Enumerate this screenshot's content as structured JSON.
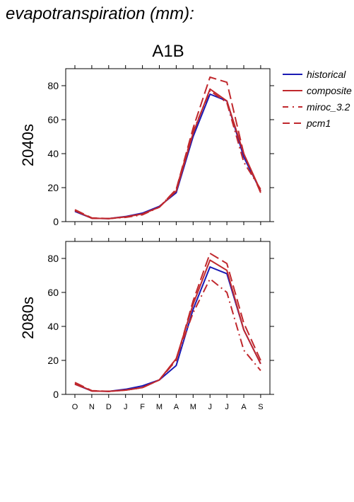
{
  "page_title": "evapotranspiration (mm):",
  "colors": {
    "historical": "#1a1ab4",
    "composite": "#c0282d",
    "miroc_3.2": "#c0282d",
    "pcm1": "#c0282d"
  },
  "chart_data": {
    "type": "line",
    "title": "A1B",
    "categories": [
      "O",
      "N",
      "D",
      "J",
      "F",
      "M",
      "A",
      "M",
      "J",
      "J",
      "A",
      "S"
    ],
    "ylim": [
      0,
      90
    ],
    "yticks": [
      0,
      20,
      40,
      60,
      80
    ],
    "legend": {
      "placement": "right",
      "entries": [
        {
          "name": "historical",
          "style": "solid",
          "color": "#1a1ab4"
        },
        {
          "name": "composite",
          "style": "solid",
          "color": "#c0282d"
        },
        {
          "name": "miroc_3.2",
          "style": "dashdot",
          "color": "#c0282d"
        },
        {
          "name": "pcm1",
          "style": "dashed",
          "color": "#c0282d"
        }
      ]
    },
    "panels": [
      {
        "ylabel": "2040s",
        "series": [
          {
            "name": "historical",
            "values": [
              6,
              2,
              1.8,
              3,
              5,
              9,
              17,
              50,
              75,
              71,
              38,
              18
            ]
          },
          {
            "name": "composite",
            "values": [
              6.5,
              2,
              1.8,
              2.8,
              4.5,
              8.5,
              18,
              52,
              78,
              71,
              40,
              18
            ]
          },
          {
            "name": "miroc_3.2",
            "values": [
              6.5,
              2,
              1.8,
              2.5,
              4,
              8.5,
              19,
              53,
              77,
              70,
              35,
              19
            ]
          },
          {
            "name": "pcm1",
            "values": [
              7,
              2.2,
              1.8,
              2.8,
              4.5,
              8.5,
              19,
              55,
              85,
              82,
              40,
              17
            ]
          }
        ]
      },
      {
        "ylabel": "2080s",
        "series": [
          {
            "name": "historical",
            "values": [
              6,
              2,
              1.8,
              3,
              5,
              8.5,
              17,
              50,
              75,
              71,
              38,
              18
            ]
          },
          {
            "name": "composite",
            "values": [
              6.5,
              2,
              1.8,
              2.5,
              4,
              8.5,
              21,
              53,
              79,
              73,
              38,
              18
            ]
          },
          {
            "name": "miroc_3.2",
            "values": [
              6,
              2,
              1.8,
              2.5,
              4,
              8.5,
              21,
              48,
              68,
              60,
              26,
              14
            ]
          },
          {
            "name": "pcm1",
            "values": [
              7,
              2.2,
              1.8,
              2.5,
              4,
              8.5,
              20,
              55,
              83,
              77,
              42,
              20
            ]
          }
        ]
      }
    ]
  }
}
